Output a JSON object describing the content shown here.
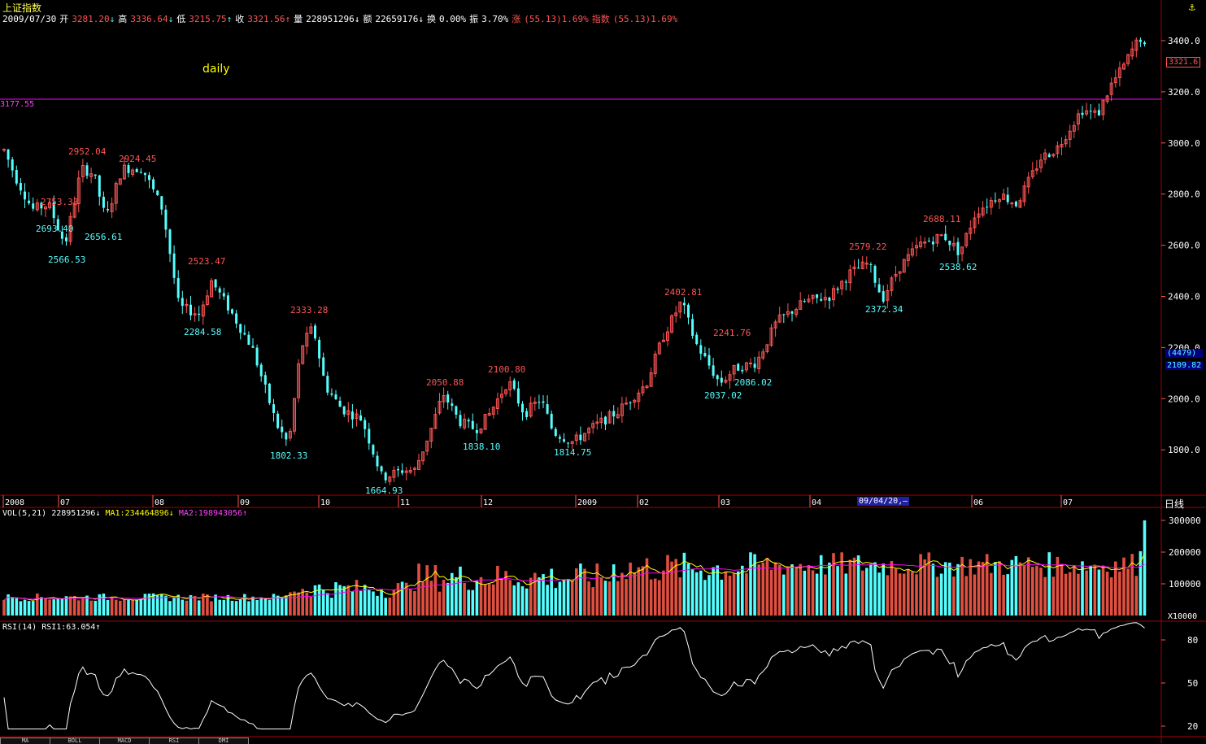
{
  "header": {
    "title": "上证指数",
    "date": "2009/07/30",
    "open_label": "开",
    "open": "3281.20",
    "high_label": "高",
    "high": "3336.64",
    "low_label": "低",
    "low": "3215.75",
    "close_label": "收",
    "close": "3321.56",
    "volume_label": "量",
    "volume": "228951296",
    "amount_label": "额",
    "amount": "22659176",
    "turnover_label": "换",
    "turnover": "0.00%",
    "amplitude_label": "振",
    "amplitude": "3.70%",
    "change_label": "涨",
    "change": "(55.13)1.69%",
    "index_label": "指数",
    "index_change": "(55.13)1.69%",
    "up_arrow": "↑",
    "down_arrow": "↓"
  },
  "period_label": "daily",
  "hline_value": "3177.55",
  "current_price_tag": "3321.6",
  "crosshair": {
    "count": "(4479)",
    "price": "2109.82",
    "date": "09/04/20,—"
  },
  "period_right_label": "日线",
  "anchor_icon": "anchor-icon",
  "price_axis": [
    "3400.0",
    "3200.0",
    "3000.0",
    "2800.0",
    "2600.0",
    "2400.0",
    "2200.0",
    "2000.0",
    "1800.0"
  ],
  "date_axis": [
    "2008",
    "07",
    "08",
    "09",
    "10",
    "11",
    "12",
    "2009",
    "02",
    "03",
    "04",
    "06",
    "07"
  ],
  "price_annotations": [
    {
      "text": "2952.04",
      "kind": "high"
    },
    {
      "text": "2924.45",
      "kind": "high"
    },
    {
      "text": "2753.33",
      "kind": "high"
    },
    {
      "text": "2693.40",
      "kind": "low"
    },
    {
      "text": "2656.61",
      "kind": "low"
    },
    {
      "text": "2566.53",
      "kind": "low"
    },
    {
      "text": "2523.47",
      "kind": "high"
    },
    {
      "text": "2284.58",
      "kind": "low"
    },
    {
      "text": "2333.28",
      "kind": "high"
    },
    {
      "text": "1802.33",
      "kind": "low"
    },
    {
      "text": "2050.88",
      "kind": "high"
    },
    {
      "text": "1664.93",
      "kind": "low"
    },
    {
      "text": "2100.80",
      "kind": "high"
    },
    {
      "text": "1838.10",
      "kind": "low"
    },
    {
      "text": "1814.75",
      "kind": "low"
    },
    {
      "text": "2402.81",
      "kind": "high"
    },
    {
      "text": "2241.76",
      "kind": "high"
    },
    {
      "text": "2037.02",
      "kind": "low"
    },
    {
      "text": "2086.02",
      "kind": "low"
    },
    {
      "text": "2579.22",
      "kind": "high"
    },
    {
      "text": "2372.34",
      "kind": "low"
    },
    {
      "text": "2688.11",
      "kind": "high"
    },
    {
      "text": "2538.62",
      "kind": "low"
    }
  ],
  "volume_panel": {
    "label": "VOL(5,21)",
    "value": "228951296",
    "ma1_label": "MA1:",
    "ma1": "234464896",
    "ma2_label": "MA2:",
    "ma2": "198943056",
    "axis": [
      "300000",
      "200000",
      "100000"
    ],
    "unit": "X10000"
  },
  "rsi_panel": {
    "label": "RSI(14)",
    "rsi1_label": "RSI1:",
    "rsi1": "63.054",
    "axis": [
      "80",
      "50",
      "20"
    ]
  },
  "bottom_tabs": [
    "MA",
    "BOLL",
    "MACD",
    "RSI",
    "DMI"
  ],
  "colors": {
    "up": "#ff5555",
    "down": "#55ffff",
    "hline": "#ff00ff",
    "ma1": "#ffff00",
    "ma2": "#ff00ff",
    "grid_border": "#aa0000",
    "axis_text": "#ffffff"
  }
}
